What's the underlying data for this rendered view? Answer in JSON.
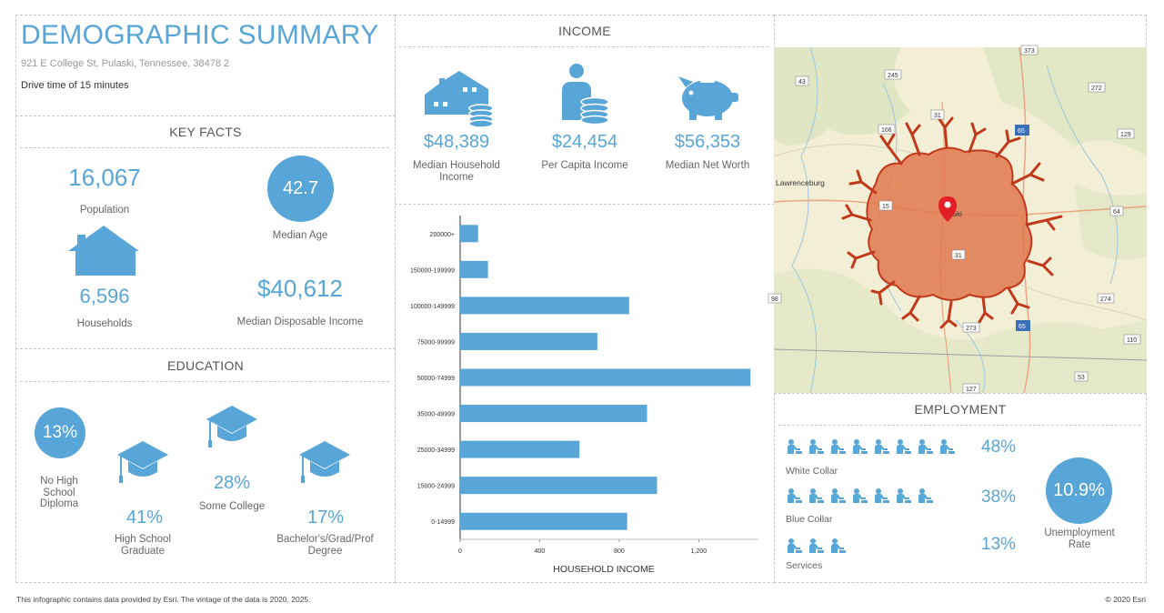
{
  "header": {
    "title": "DEMOGRAPHIC SUMMARY",
    "address": "921 E College St, Pulaski, Tennessee, 38478 2",
    "drive_time": "Drive time of 15 minutes"
  },
  "key_facts": {
    "title": "KEY FACTS",
    "population_value": "16,067",
    "population_label": "Population",
    "median_age_value": "42.7",
    "median_age_label": "Median Age",
    "households_value": "6,596",
    "households_label": "Households",
    "disposable_income_value": "$40,612",
    "disposable_income_label": "Median Disposable Income"
  },
  "education": {
    "title": "EDUCATION",
    "no_hs_value": "13%",
    "no_hs_label_1": "No High",
    "no_hs_label_2": "School",
    "no_hs_label_3": "Diploma",
    "hs_value": "41%",
    "hs_label_1": "High School",
    "hs_label_2": "Graduate",
    "some_college_value": "28%",
    "some_college_label": "Some College",
    "bachelor_value": "17%",
    "bachelor_label_1": "Bachelor's/Grad/Prof",
    "bachelor_label_2": "Degree"
  },
  "income": {
    "title": "INCOME",
    "median_household_value": "$48,389",
    "median_household_label_1": "Median Household",
    "median_household_label_2": "Income",
    "per_capita_value": "$24,454",
    "per_capita_label": "Per Capita Income",
    "net_worth_value": "$56,353",
    "net_worth_label": "Median Net Worth"
  },
  "chart_data": {
    "type": "bar",
    "orientation": "horizontal",
    "categories": [
      "200000+",
      "150000-199999",
      "100000-149999",
      "75000-99999",
      "50000-74999",
      "35000-49999",
      "25000-34999",
      "15000-24999",
      "0-14999"
    ],
    "values": [
      90,
      140,
      850,
      690,
      1460,
      940,
      600,
      990,
      840
    ],
    "xlabel": "HOUSEHOLD INCOME",
    "xlim": [
      0,
      1500
    ],
    "xticks": [
      "0",
      "400",
      "800",
      "1,200"
    ],
    "bar_color": "#58a5d8"
  },
  "map": {
    "place_labels": [
      "Lawrenceburg",
      "ski"
    ],
    "road_labels": [
      "373",
      "245",
      "43",
      "272",
      "166",
      "31",
      "65",
      "129",
      "64",
      "15",
      "31",
      "274",
      "273",
      "65",
      "110",
      "53",
      "127",
      "98"
    ]
  },
  "employment": {
    "title": "EMPLOYMENT",
    "white_collar_value": "48%",
    "white_collar_label": "White Collar",
    "blue_collar_value": "38%",
    "blue_collar_label": "Blue Collar",
    "services_value": "13%",
    "services_label": "Services",
    "unemployment_value": "10.9%",
    "unemployment_label_1": "Unemployment",
    "unemployment_label_2": "Rate"
  },
  "footer": {
    "source": "This infographic contains data provided by Esri. The vintage of the data is 2020, 2025.",
    "copyright": "© 2020 Esri"
  },
  "colors": {
    "accent": "#58a5d8",
    "map_area": "#e0784f",
    "map_outline": "#c0391b",
    "pin": "#e21f26"
  }
}
